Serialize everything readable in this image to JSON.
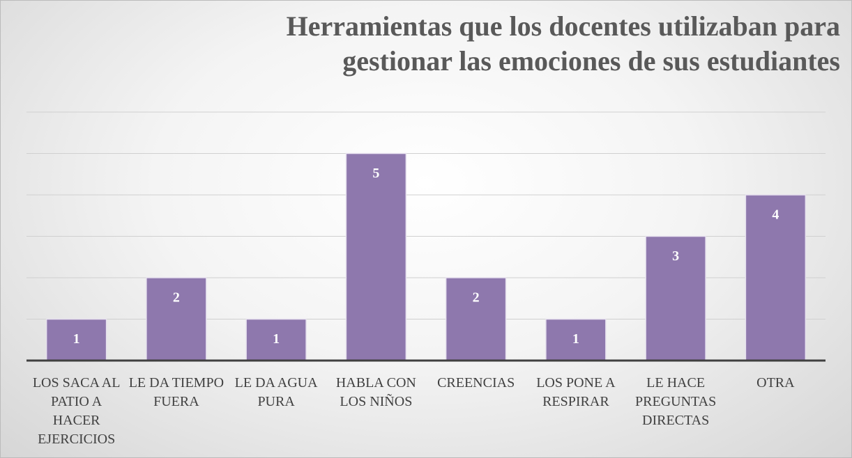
{
  "chart_data": {
    "type": "bar",
    "title": "Herramientas que los docentes utilizaban para gestionar las emociones de sus estudiantes",
    "categories": [
      "LOS SACA AL PATIO A HACER EJERCICIOS",
      "LE DA TIEMPO FUERA",
      "LE DA AGUA PURA",
      "HABLA CON LOS NIÑOS",
      "CREENCIAS",
      "LOS PONE A RESPIRAR",
      "LE HACE PREGUNTAS DIRECTAS",
      "OTRA"
    ],
    "values": [
      1,
      2,
      1,
      5,
      2,
      1,
      3,
      4
    ],
    "color": "#8e78ad",
    "ylim": [
      0,
      6
    ],
    "yticks": [
      0,
      1,
      2,
      3,
      4,
      5,
      6
    ],
    "grid": true
  }
}
